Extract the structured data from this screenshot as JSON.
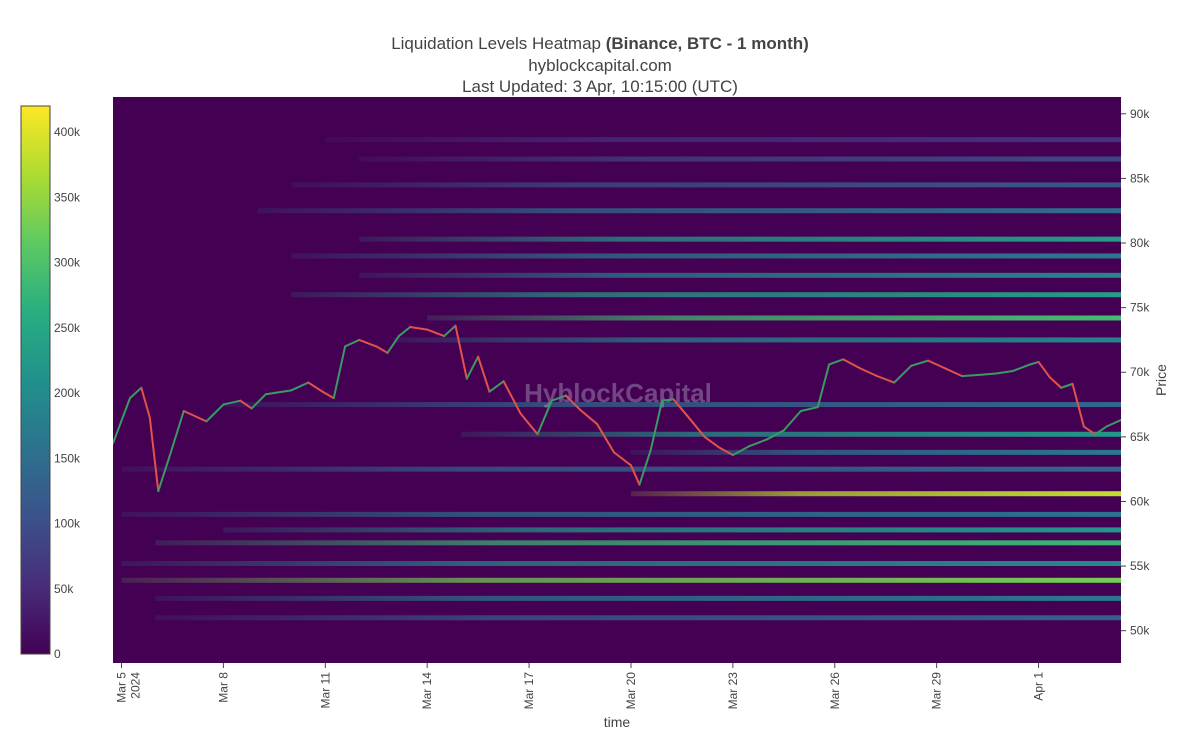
{
  "title": {
    "line1_prefix": "Liquidation Levels Heatmap ",
    "line1_bold": "(Binance, BTC - 1 month)",
    "line2": "hyblockcapital.com",
    "line3": "Last Updated: 3 Apr, 10:15:00 (UTC)"
  },
  "watermark": "HyblockCapital",
  "chart_data": {
    "type": "heatmap",
    "xlabel": "time",
    "ylabel": "Price",
    "x_ticks": [
      {
        "date": "2024-03-05",
        "label": "Mar 5",
        "sublabel": "2024"
      },
      {
        "date": "2024-03-08",
        "label": "Mar 8"
      },
      {
        "date": "2024-03-11",
        "label": "Mar 11"
      },
      {
        "date": "2024-03-14",
        "label": "Mar 14"
      },
      {
        "date": "2024-03-17",
        "label": "Mar 17"
      },
      {
        "date": "2024-03-20",
        "label": "Mar 20"
      },
      {
        "date": "2024-03-23",
        "label": "Mar 23"
      },
      {
        "date": "2024-03-26",
        "label": "Mar 26"
      },
      {
        "date": "2024-03-29",
        "label": "Mar 29"
      },
      {
        "date": "2024-04-01",
        "label": "Apr 1"
      }
    ],
    "xlim": [
      "2024-03-04T18:00",
      "2024-04-03T10:15"
    ],
    "y_ticks": [
      {
        "value": 50000,
        "label": "50k"
      },
      {
        "value": 55000,
        "label": "55k"
      },
      {
        "value": 60000,
        "label": "60k"
      },
      {
        "value": 65000,
        "label": "65k"
      },
      {
        "value": 70000,
        "label": "70k"
      },
      {
        "value": 75000,
        "label": "75k"
      },
      {
        "value": 80000,
        "label": "80k"
      },
      {
        "value": 85000,
        "label": "85k"
      },
      {
        "value": 90000,
        "label": "90k"
      }
    ],
    "ylim": [
      47500,
      91300
    ],
    "colorbar": {
      "colorscale": "viridis",
      "range": [
        0,
        420000
      ],
      "ticks": [
        {
          "value": 0,
          "label": "0"
        },
        {
          "value": 50000,
          "label": "50k"
        },
        {
          "value": 100000,
          "label": "100k"
        },
        {
          "value": 150000,
          "label": "150k"
        },
        {
          "value": 200000,
          "label": "200k"
        },
        {
          "value": 250000,
          "label": "250k"
        },
        {
          "value": 300000,
          "label": "300k"
        },
        {
          "value": 350000,
          "label": "350k"
        },
        {
          "value": 400000,
          "label": "400k"
        }
      ]
    },
    "liquidation_bands": [
      {
        "price": 88000,
        "value": 60000,
        "start": "2024-03-11"
      },
      {
        "price": 86500,
        "value": 90000,
        "start": "2024-03-12"
      },
      {
        "price": 84500,
        "value": 110000,
        "start": "2024-03-10"
      },
      {
        "price": 82500,
        "value": 150000,
        "start": "2024-03-09"
      },
      {
        "price": 80300,
        "value": 230000,
        "start": "2024-03-12"
      },
      {
        "price": 79000,
        "value": 170000,
        "start": "2024-03-10"
      },
      {
        "price": 77500,
        "value": 190000,
        "start": "2024-03-12"
      },
      {
        "price": 76000,
        "value": 230000,
        "start": "2024-03-10"
      },
      {
        "price": 74200,
        "value": 290000,
        "start": "2024-03-14"
      },
      {
        "price": 72500,
        "value": 190000,
        "start": "2024-03-13"
      },
      {
        "price": 67500,
        "value": 140000,
        "start": "2024-03-08"
      },
      {
        "price": 65200,
        "value": 220000,
        "start": "2024-03-15"
      },
      {
        "price": 63800,
        "value": 170000,
        "start": "2024-03-20"
      },
      {
        "price": 62500,
        "value": 140000,
        "start": "2024-03-05"
      },
      {
        "price": 60600,
        "value": 380000,
        "start": "2024-03-20"
      },
      {
        "price": 59000,
        "value": 160000,
        "start": "2024-03-05"
      },
      {
        "price": 57800,
        "value": 220000,
        "start": "2024-03-08"
      },
      {
        "price": 56800,
        "value": 280000,
        "start": "2024-03-06"
      },
      {
        "price": 55200,
        "value": 200000,
        "start": "2024-03-05"
      },
      {
        "price": 53900,
        "value": 330000,
        "start": "2024-03-05"
      },
      {
        "price": 52500,
        "value": 170000,
        "start": "2024-03-06"
      },
      {
        "price": 51000,
        "value": 130000,
        "start": "2024-03-06"
      }
    ],
    "price_series": {
      "name": "BTC",
      "points": [
        [
          "2024-03-04T18:00",
          64500
        ],
        [
          "2024-03-05T06:00",
          68000
        ],
        [
          "2024-03-05T14:00",
          68800
        ],
        [
          "2024-03-05T20:00",
          66500
        ],
        [
          "2024-03-06T02:00",
          60800
        ],
        [
          "2024-03-06T10:00",
          63500
        ],
        [
          "2024-03-06T20:00",
          67000
        ],
        [
          "2024-03-07T12:00",
          66200
        ],
        [
          "2024-03-08T00:00",
          67500
        ],
        [
          "2024-03-08T12:00",
          67800
        ],
        [
          "2024-03-08T20:00",
          67200
        ],
        [
          "2024-03-09T06:00",
          68300
        ],
        [
          "2024-03-10T00:00",
          68600
        ],
        [
          "2024-03-10T12:00",
          69200
        ],
        [
          "2024-03-10T22:00",
          68500
        ],
        [
          "2024-03-11T06:00",
          68000
        ],
        [
          "2024-03-11T14:00",
          72000
        ],
        [
          "2024-03-12T00:00",
          72500
        ],
        [
          "2024-03-12T12:00",
          72000
        ],
        [
          "2024-03-12T20:00",
          71500
        ],
        [
          "2024-03-13T04:00",
          72800
        ],
        [
          "2024-03-13T12:00",
          73500
        ],
        [
          "2024-03-14T00:00",
          73300
        ],
        [
          "2024-03-14T12:00",
          72800
        ],
        [
          "2024-03-14T20:00",
          73600
        ],
        [
          "2024-03-15T04:00",
          69500
        ],
        [
          "2024-03-15T12:00",
          71200
        ],
        [
          "2024-03-15T20:00",
          68500
        ],
        [
          "2024-03-16T06:00",
          69300
        ],
        [
          "2024-03-16T18:00",
          66800
        ],
        [
          "2024-03-17T06:00",
          65200
        ],
        [
          "2024-03-17T16:00",
          67800
        ],
        [
          "2024-03-18T02:00",
          68200
        ],
        [
          "2024-03-18T12:00",
          67100
        ],
        [
          "2024-03-19T00:00",
          66000
        ],
        [
          "2024-03-19T12:00",
          63800
        ],
        [
          "2024-03-20T00:00",
          62800
        ],
        [
          "2024-03-20T06:00",
          61300
        ],
        [
          "2024-03-20T14:00",
          64000
        ],
        [
          "2024-03-20T22:00",
          67800
        ],
        [
          "2024-03-21T06:00",
          67900
        ],
        [
          "2024-03-21T16:00",
          66600
        ],
        [
          "2024-03-22T04:00",
          65000
        ],
        [
          "2024-03-22T14:00",
          64200
        ],
        [
          "2024-03-23T00:00",
          63600
        ],
        [
          "2024-03-23T12:00",
          64300
        ],
        [
          "2024-03-24T00:00",
          64800
        ],
        [
          "2024-03-24T12:00",
          65500
        ],
        [
          "2024-03-25T00:00",
          67000
        ],
        [
          "2024-03-25T12:00",
          67300
        ],
        [
          "2024-03-25T20:00",
          70600
        ],
        [
          "2024-03-26T06:00",
          71000
        ],
        [
          "2024-03-26T18:00",
          70300
        ],
        [
          "2024-03-27T06:00",
          69700
        ],
        [
          "2024-03-27T18:00",
          69200
        ],
        [
          "2024-03-28T06:00",
          70500
        ],
        [
          "2024-03-28T18:00",
          70900
        ],
        [
          "2024-03-29T06:00",
          70300
        ],
        [
          "2024-03-29T18:00",
          69700
        ],
        [
          "2024-03-30T06:00",
          69800
        ],
        [
          "2024-03-30T18:00",
          69900
        ],
        [
          "2024-03-31T06:00",
          70100
        ],
        [
          "2024-03-31T18:00",
          70600
        ],
        [
          "2024-04-01T00:00",
          70800
        ],
        [
          "2024-04-01T08:00",
          69600
        ],
        [
          "2024-04-01T16:00",
          68800
        ],
        [
          "2024-04-02T00:00",
          69100
        ],
        [
          "2024-04-02T08:00",
          65800
        ],
        [
          "2024-04-02T16:00",
          65200
        ],
        [
          "2024-04-03T00:00",
          65800
        ],
        [
          "2024-04-03T10:15",
          66300
        ]
      ]
    },
    "colors": {
      "price_up": "#3a9a63",
      "price_down": "#e0534a",
      "background": "#440154"
    }
  }
}
